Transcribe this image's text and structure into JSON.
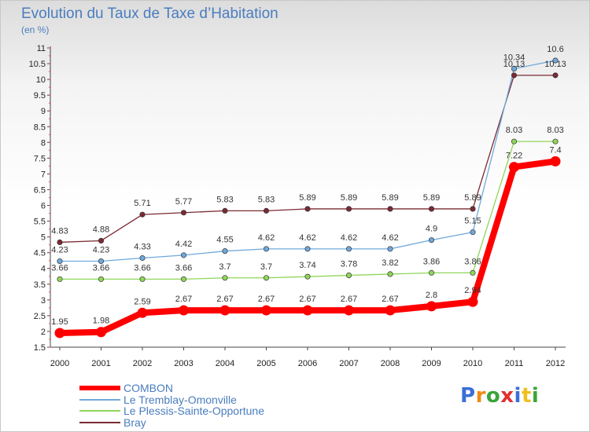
{
  "header": {
    "title": "Evolution du Taux de Taxe d’Habitation",
    "subtitle": "(en %)"
  },
  "brand": {
    "text": "Proxiti",
    "letter_colors": [
      "#3a6fd6",
      "#f08a10",
      "#3aa53a",
      "#e03030",
      "#3a6fd6",
      "#f0c020",
      "#3aa53a"
    ]
  },
  "chart_data": {
    "type": "line",
    "title": "Evolution du Taux de Taxe d’Habitation",
    "subtitle": "(en %)",
    "xlabel": "",
    "ylabel": "",
    "x": [
      "2000",
      "2001",
      "2002",
      "2003",
      "2004",
      "2005",
      "2006",
      "2007",
      "2008",
      "2009",
      "2010",
      "2011",
      "2012"
    ],
    "ylim": [
      1.5,
      11
    ],
    "yticks": [
      "1.5",
      "2",
      "2.5",
      "3",
      "3.5",
      "4",
      "4.5",
      "5",
      "5.5",
      "6",
      "6.5",
      "7",
      "7.5",
      "8",
      "8.5",
      "9",
      "9.5",
      "10",
      "10.5",
      "11"
    ],
    "grid": false,
    "legend_position": "bottom-left",
    "series": [
      {
        "name": "COMBON",
        "color": "#ff0000",
        "values": [
          1.95,
          1.98,
          2.59,
          2.67,
          2.67,
          2.67,
          2.67,
          2.67,
          2.67,
          2.8,
          2.94,
          7.22,
          7.4
        ],
        "labels": [
          "1.95",
          "1.98",
          "2.59",
          "2.67",
          "2.67",
          "2.67",
          "2.67",
          "2.67",
          "2.67",
          "2.8",
          "2.94",
          "7.22",
          "7.4"
        ]
      },
      {
        "name": "Le Tremblay-Omonville",
        "color": "#6fa8dc",
        "values": [
          4.23,
          4.23,
          4.33,
          4.42,
          4.55,
          4.62,
          4.62,
          4.62,
          4.62,
          4.9,
          5.15,
          10.34,
          10.6
        ],
        "labels": [
          "4.23",
          "4.23",
          "4.33",
          "4.42",
          "4.55",
          "4.62",
          "4.62",
          "4.62",
          "4.62",
          "4.9",
          "5.15",
          "10.34",
          "10.6"
        ]
      },
      {
        "name": "Le Plessis-Sainte-Opportune",
        "color": "#8fd65a",
        "values": [
          3.66,
          3.66,
          3.66,
          3.66,
          3.7,
          3.7,
          3.74,
          3.78,
          3.82,
          3.86,
          3.86,
          8.03,
          8.03
        ],
        "labels": [
          "3.66",
          "3.66",
          "3.66",
          "3.66",
          "3.7",
          "3.7",
          "3.74",
          "3.78",
          "3.82",
          "3.86",
          "3.86",
          "8.03",
          "8.03"
        ]
      },
      {
        "name": "Bray",
        "color": "#7a2a32",
        "values": [
          4.83,
          4.88,
          5.71,
          5.77,
          5.83,
          5.83,
          5.89,
          5.89,
          5.89,
          5.89,
          5.89,
          10.13,
          10.13
        ],
        "labels": [
          "4.83",
          "4.88",
          "5.71",
          "5.77",
          "5.83",
          "5.83",
          "5.89",
          "5.89",
          "5.89",
          "5.89",
          "5.89",
          "10.13",
          "10.13"
        ]
      }
    ]
  }
}
